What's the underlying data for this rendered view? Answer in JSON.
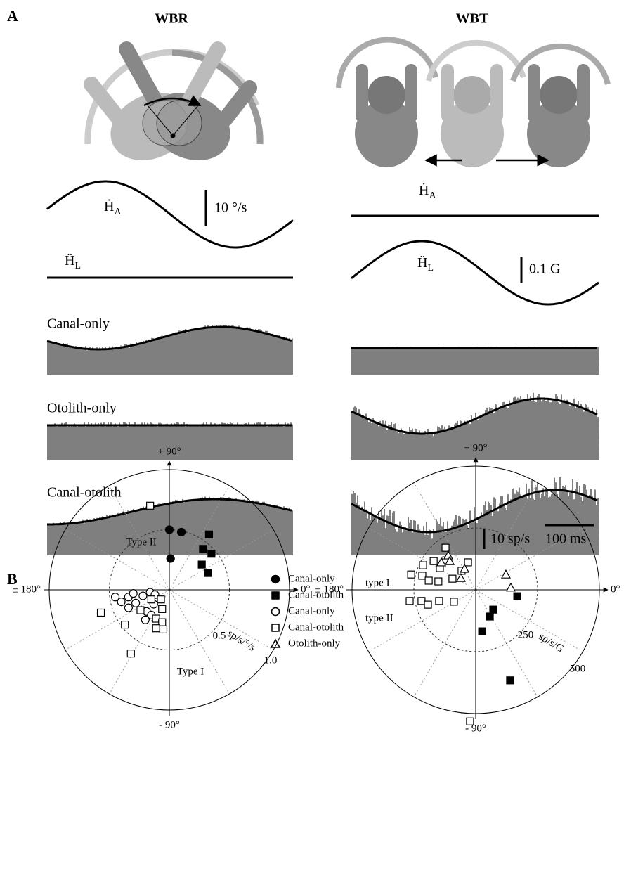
{
  "panel_a": {
    "label": "A",
    "wbr": {
      "title": "WBR",
      "velocity_trace": {
        "symbol": "Ḣ",
        "subscript": "A"
      },
      "velocity_scale": "10 °/s",
      "accel_trace": {
        "symbol": "Ḧ",
        "subscript": "L"
      }
    },
    "wbt": {
      "title": "WBT",
      "velocity_trace": {
        "symbol": "Ḣ",
        "subscript": "A"
      },
      "accel_trace": {
        "symbol": "Ḧ",
        "subscript": "L"
      },
      "accel_scale": "0.1 G"
    },
    "rows": [
      "Canal-only",
      "Otolith-only",
      "Canal-otolith"
    ],
    "rate_scale": "10 sp/s",
    "time_scale": "100 ms"
  },
  "panel_b": {
    "label": "B",
    "legend": [
      {
        "name": "Canal-only",
        "marker": "filled-circle"
      },
      {
        "name": "Canal-otolith",
        "marker": "filled-square"
      },
      {
        "name": "Canal-only",
        "marker": "open-circle"
      },
      {
        "name": "Canal-otolith",
        "marker": "open-square"
      },
      {
        "name": "Otolith-only",
        "marker": "open-triangle"
      }
    ],
    "type_labels": [
      "type I",
      "type II"
    ],
    "plots": [
      {
        "angle_labels": {
          "top": "+ 90°",
          "left": "± 180°",
          "right": "0°",
          "bottom": "- 90°"
        },
        "region_labels": [
          "Type II",
          "Type I"
        ],
        "rings": [
          0.5,
          {
            "value": 1,
            "label": "1.0"
          }
        ],
        "unit": "sp/s/°/s",
        "series": [
          {
            "points": [
              [
                0,
                0.5
              ],
              [
                0.1,
                0.48
              ],
              [
                0.01,
                0.26
              ]
            ]
          },
          {
            "points": [
              [
                0.33,
                0.46
              ],
              [
                0.28,
                0.34
              ],
              [
                0.35,
                0.3
              ],
              [
                0.27,
                0.21
              ],
              [
                0.32,
                0.14
              ]
            ]
          },
          {
            "points": [
              [
                -0.45,
                -0.06
              ],
              [
                -0.4,
                -0.1
              ],
              [
                -0.34,
                -0.06
              ],
              [
                -0.3,
                -0.03
              ],
              [
                -0.22,
                -0.05
              ],
              [
                -0.16,
                -0.02
              ],
              [
                -0.12,
                -0.04
              ],
              [
                -0.13,
                -0.12
              ],
              [
                -0.28,
                -0.11
              ],
              [
                -0.34,
                -0.15
              ],
              [
                -0.19,
                -0.18
              ],
              [
                -0.15,
                -0.21
              ],
              [
                -0.2,
                -0.25
              ]
            ]
          },
          {
            "points": [
              [
                -0.16,
                0.7
              ],
              [
                -0.57,
                -0.19
              ],
              [
                -0.37,
                -0.29
              ],
              [
                -0.32,
                -0.53
              ],
              [
                -0.07,
                -0.08
              ],
              [
                -0.06,
                -0.16
              ],
              [
                -0.11,
                -0.24
              ],
              [
                -0.06,
                -0.27
              ],
              [
                -0.05,
                -0.33
              ],
              [
                -0.11,
                -0.32
              ],
              [
                -0.15,
                -0.08
              ],
              [
                -0.24,
                -0.17
              ]
            ]
          },
          {
            "points": []
          }
        ]
      },
      {
        "angle_labels": {
          "top": "+ 90°",
          "left": "± 180°",
          "right": "0°",
          "bottom": "- 90°"
        },
        "rings": [
          250,
          500
        ],
        "unit": "sp/s/G",
        "series": [
          {
            "points": []
          },
          {
            "points": [
              [
                168,
                -26
              ],
              [
                71,
                -80
              ],
              [
                57,
                -108
              ],
              [
                26,
                -168
              ],
              [
                139,
                -366
              ]
            ]
          },
          {
            "points": []
          },
          {
            "points": [
              [
                -122,
                170
              ],
              [
                -261,
                62
              ],
              [
                -213,
                99
              ],
              [
                -170,
                116
              ],
              [
                -119,
                119
              ],
              [
                -145,
                88
              ],
              [
                -216,
                57
              ],
              [
                -190,
                37
              ],
              [
                -151,
                34
              ],
              [
                -94,
                45
              ],
              [
                -57,
                77
              ],
              [
                -31,
                111
              ],
              [
                -267,
                -45
              ],
              [
                -219,
                -45
              ],
              [
                -193,
                -60
              ],
              [
                -148,
                -45
              ],
              [
                -88,
                -48
              ],
              [
                -23,
                -532
              ]
            ]
          },
          {
            "points": [
              [
                -111,
                139
              ],
              [
                -139,
                111
              ],
              [
                -105,
                116
              ],
              [
                -45,
                85
              ],
              [
                -60,
                48
              ],
              [
                122,
                62
              ],
              [
                142,
                9
              ]
            ]
          }
        ]
      }
    ]
  }
}
